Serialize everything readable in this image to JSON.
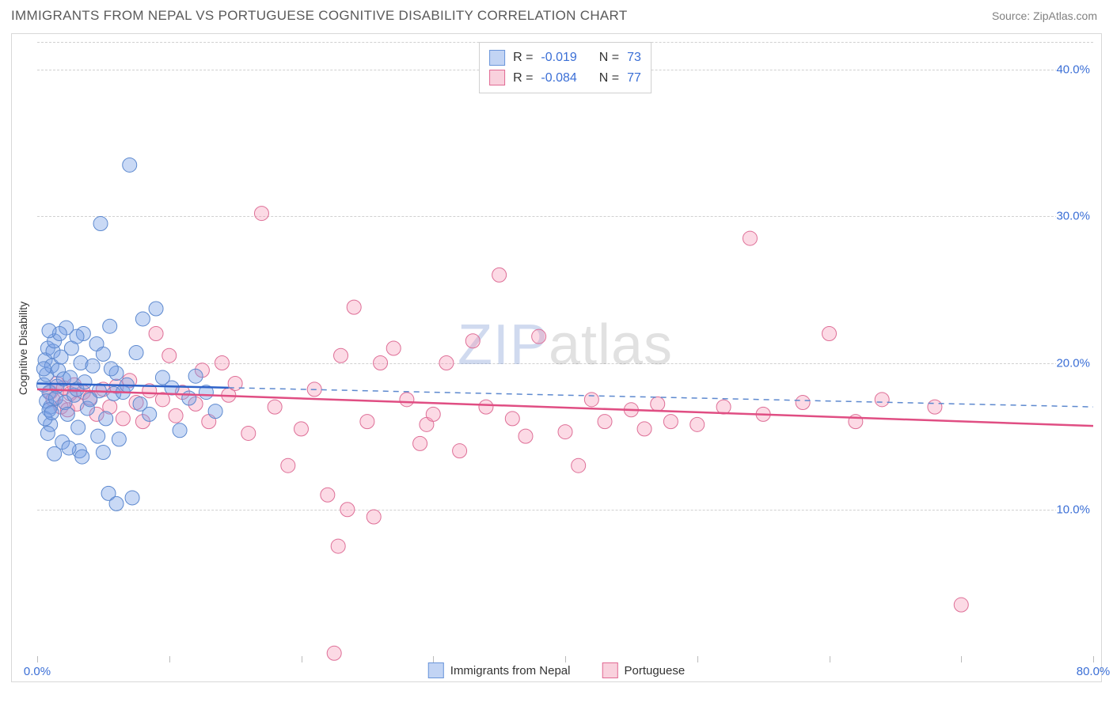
{
  "header": {
    "title": "IMMIGRANTS FROM NEPAL VS PORTUGUESE COGNITIVE DISABILITY CORRELATION CHART",
    "source": "Source: ZipAtlas.com"
  },
  "watermark": {
    "prefix": "ZIP",
    "suffix": "atlas"
  },
  "chart": {
    "type": "scatter",
    "background_color": "#ffffff",
    "grid_color": "#d0d0d0",
    "border_color": "#d8d8d8",
    "y_axis_title": "Cognitive Disability",
    "xlim": [
      0,
      80
    ],
    "ylim": [
      0,
      42
    ],
    "x_ticks": [
      0,
      10,
      20,
      30,
      40,
      50,
      60,
      70,
      80
    ],
    "x_tick_labels": {
      "0": "0.0%",
      "80": "80.0%"
    },
    "y_ticks": [
      10,
      20,
      30,
      40
    ],
    "y_tick_labels": {
      "10": "10.0%",
      "20": "20.0%",
      "30": "30.0%",
      "40": "40.0%"
    },
    "marker_radius": 9,
    "series": [
      {
        "name": "Immigrants from Nepal",
        "color_fill": "rgba(120,160,230,0.40)",
        "color_stroke": "#5d89cf",
        "R": "-0.019",
        "N": "73",
        "trend": {
          "x_solid_end": 14.5,
          "y_start": 18.6,
          "y_end": 17.0
        },
        "points": [
          [
            0.5,
            18.5
          ],
          [
            0.7,
            19.2
          ],
          [
            0.8,
            21.0
          ],
          [
            0.6,
            20.2
          ],
          [
            0.9,
            18.0
          ],
          [
            1.0,
            17.0
          ],
          [
            1.1,
            19.8
          ],
          [
            1.2,
            20.8
          ],
          [
            0.7,
            17.4
          ],
          [
            0.9,
            16.8
          ],
          [
            1.3,
            21.5
          ],
          [
            1.0,
            15.8
          ],
          [
            0.8,
            15.2
          ],
          [
            1.5,
            18.4
          ],
          [
            1.4,
            17.6
          ],
          [
            1.6,
            19.5
          ],
          [
            1.8,
            20.4
          ],
          [
            2.0,
            18.9
          ],
          [
            2.1,
            17.3
          ],
          [
            2.3,
            16.5
          ],
          [
            2.5,
            19.0
          ],
          [
            2.6,
            21.0
          ],
          [
            2.8,
            17.8
          ],
          [
            3.0,
            18.2
          ],
          [
            3.1,
            15.6
          ],
          [
            3.3,
            20.0
          ],
          [
            3.5,
            22.0
          ],
          [
            3.6,
            18.7
          ],
          [
            3.8,
            16.9
          ],
          [
            4.0,
            17.5
          ],
          [
            4.2,
            19.8
          ],
          [
            4.5,
            21.3
          ],
          [
            4.7,
            18.1
          ],
          [
            5.0,
            20.6
          ],
          [
            5.2,
            16.2
          ],
          [
            5.5,
            22.5
          ],
          [
            5.8,
            17.9
          ],
          [
            6.0,
            19.3
          ],
          [
            6.2,
            14.8
          ],
          [
            6.5,
            18.0
          ],
          [
            3.2,
            14.0
          ],
          [
            3.4,
            13.6
          ],
          [
            5.0,
            13.9
          ],
          [
            4.8,
            29.5
          ],
          [
            7.0,
            33.5
          ],
          [
            8.0,
            23.0
          ],
          [
            9.0,
            23.7
          ],
          [
            5.4,
            11.1
          ],
          [
            6.0,
            10.4
          ],
          [
            7.2,
            10.8
          ],
          [
            3.0,
            21.8
          ],
          [
            2.2,
            22.4
          ],
          [
            1.7,
            22.0
          ],
          [
            1.9,
            14.6
          ],
          [
            2.4,
            14.2
          ],
          [
            0.6,
            16.2
          ],
          [
            0.5,
            19.6
          ],
          [
            0.9,
            22.2
          ],
          [
            1.1,
            16.6
          ],
          [
            1.3,
            13.8
          ],
          [
            4.6,
            15.0
          ],
          [
            7.5,
            20.7
          ],
          [
            8.5,
            16.5
          ],
          [
            9.5,
            19.0
          ],
          [
            10.2,
            18.3
          ],
          [
            10.8,
            15.4
          ],
          [
            11.5,
            17.6
          ],
          [
            12.0,
            19.1
          ],
          [
            12.8,
            18.0
          ],
          [
            13.5,
            16.7
          ],
          [
            5.6,
            19.6
          ],
          [
            6.8,
            18.5
          ],
          [
            7.8,
            17.2
          ]
        ]
      },
      {
        "name": "Portuguese",
        "color_fill": "rgba(245,150,180,0.35)",
        "color_stroke": "#de6f97",
        "R": "-0.084",
        "N": "77",
        "trend": {
          "y_start": 18.2,
          "y_end": 15.7
        },
        "points": [
          [
            1.0,
            18.0
          ],
          [
            1.2,
            17.5
          ],
          [
            1.5,
            18.6
          ],
          [
            1.8,
            17.0
          ],
          [
            2.0,
            18.3
          ],
          [
            2.3,
            16.8
          ],
          [
            2.5,
            17.9
          ],
          [
            2.8,
            18.5
          ],
          [
            3.0,
            17.2
          ],
          [
            3.5,
            18.0
          ],
          [
            4.0,
            17.6
          ],
          [
            4.5,
            16.5
          ],
          [
            5.0,
            18.2
          ],
          [
            5.5,
            17.0
          ],
          [
            6.0,
            18.4
          ],
          [
            6.5,
            16.2
          ],
          [
            7.0,
            18.8
          ],
          [
            7.5,
            17.3
          ],
          [
            8.0,
            16.0
          ],
          [
            8.5,
            18.1
          ],
          [
            9.0,
            22.0
          ],
          [
            9.5,
            17.5
          ],
          [
            10.0,
            20.5
          ],
          [
            10.5,
            16.4
          ],
          [
            11.0,
            18.0
          ],
          [
            12.0,
            17.2
          ],
          [
            12.5,
            19.5
          ],
          [
            13.0,
            16.0
          ],
          [
            14.0,
            20.0
          ],
          [
            14.5,
            17.8
          ],
          [
            15.0,
            18.6
          ],
          [
            16.0,
            15.2
          ],
          [
            17.0,
            30.2
          ],
          [
            18.0,
            17.0
          ],
          [
            19.0,
            13.0
          ],
          [
            20.0,
            15.5
          ],
          [
            21.0,
            18.2
          ],
          [
            22.0,
            11.0
          ],
          [
            23.0,
            20.5
          ],
          [
            23.5,
            10.0
          ],
          [
            24.0,
            23.8
          ],
          [
            25.0,
            16.0
          ],
          [
            25.5,
            9.5
          ],
          [
            26.0,
            20.0
          ],
          [
            27.0,
            21.0
          ],
          [
            28.0,
            17.5
          ],
          [
            29.0,
            14.5
          ],
          [
            29.5,
            15.8
          ],
          [
            30.0,
            16.5
          ],
          [
            31.0,
            20.0
          ],
          [
            32.0,
            14.0
          ],
          [
            33.0,
            21.5
          ],
          [
            34.0,
            17.0
          ],
          [
            35.0,
            26.0
          ],
          [
            36.0,
            16.2
          ],
          [
            37.0,
            15.0
          ],
          [
            38.0,
            21.8
          ],
          [
            40.0,
            15.3
          ],
          [
            41.0,
            13.0
          ],
          [
            42.0,
            17.5
          ],
          [
            43.0,
            16.0
          ],
          [
            45.0,
            16.8
          ],
          [
            46.0,
            15.5
          ],
          [
            47.0,
            17.2
          ],
          [
            48.0,
            16.0
          ],
          [
            50.0,
            15.8
          ],
          [
            52.0,
            17.0
          ],
          [
            54.0,
            28.5
          ],
          [
            55.0,
            16.5
          ],
          [
            58.0,
            17.3
          ],
          [
            60.0,
            22.0
          ],
          [
            62.0,
            16.0
          ],
          [
            64.0,
            17.5
          ],
          [
            68.0,
            17.0
          ],
          [
            70.0,
            3.5
          ],
          [
            22.5,
            0.2
          ],
          [
            22.8,
            7.5
          ]
        ]
      }
    ],
    "legend_top": [
      {
        "swatch": "blue",
        "r_label": "R =",
        "r_val": "-0.019",
        "n_label": "N =",
        "n_val": "73"
      },
      {
        "swatch": "pink",
        "r_label": "R =",
        "r_val": "-0.084",
        "n_label": "N =",
        "n_val": "77"
      }
    ],
    "legend_bottom": [
      {
        "swatch": "blue",
        "label": "Immigrants from Nepal"
      },
      {
        "swatch": "pink",
        "label": "Portuguese"
      }
    ]
  }
}
